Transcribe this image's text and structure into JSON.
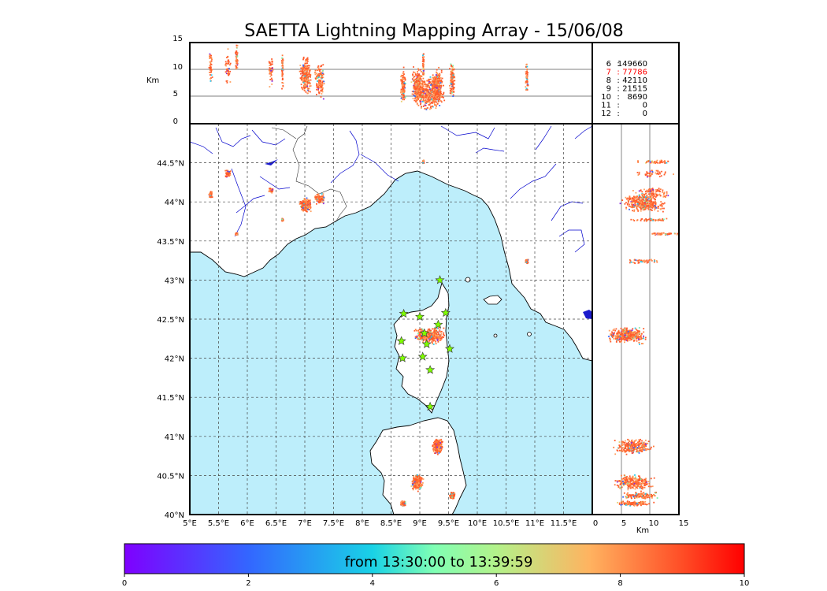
{
  "title": "SAETTA Lightning Mapping Array - 15/06/08",
  "time_range_label": "from 13:30:00 to 13:39:59",
  "km_label": "Km",
  "km_ticks": [
    "0",
    "5",
    "10",
    "15"
  ],
  "lon_ticks": [
    "5°E",
    "5.5°E",
    "6°E",
    "6.5°E",
    "7°E",
    "7.5°E",
    "8°E",
    "8.5°E",
    "9°E",
    "9.5°E",
    "10°E",
    "10.5°E",
    "11°E",
    "11.5°E"
  ],
  "lat_ticks": [
    "40°N",
    "40.5°N",
    "41°N",
    "41.5°N",
    "42°N",
    "42.5°N",
    "43°N",
    "43.5°N",
    "44°N",
    "44.5°N"
  ],
  "colorbar_ticks": [
    "0",
    "2",
    "4",
    "6",
    "8",
    "10"
  ],
  "station_counts": [
    {
      "station": "6",
      "sep": ":",
      "count": "149660",
      "color": "#000000"
    },
    {
      "station": "7",
      "sep": ":",
      "count": "77786",
      "color": "#ff0000"
    },
    {
      "station": "8",
      "sep": ":",
      "count": "42110",
      "color": "#000000"
    },
    {
      "station": "9",
      "sep": ":",
      "count": "21515",
      "color": "#000000"
    },
    {
      "station": "10",
      "sep": ":",
      "count": "8690",
      "color": "#000000"
    },
    {
      "station": "11",
      "sep": ":",
      "count": "0",
      "color": "#000000"
    },
    {
      "station": "12",
      "sep": ":",
      "count": "0",
      "color": "#000000"
    }
  ],
  "colors": {
    "sea": "#bdeefb",
    "land": "#ffffff",
    "rivers": "#0000cc",
    "station_marker": "#7fff00",
    "dense_source": "#ff5a2a"
  },
  "chart_data": {
    "type": "scatter",
    "title": "SAETTA Lightning Mapping Array - 15/06/08",
    "xlim": [
      5,
      12
    ],
    "ylim": [
      40,
      45
    ],
    "altitude_range_km": [
      0,
      15
    ],
    "color_scale": {
      "min": 0,
      "max": 10,
      "label": "from 13:30:00 to 13:39:59"
    },
    "stations": [
      {
        "lon": 9.35,
        "lat": 43.0
      },
      {
        "lon": 8.72,
        "lat": 42.57
      },
      {
        "lon": 9.0,
        "lat": 42.53
      },
      {
        "lon": 9.45,
        "lat": 42.58
      },
      {
        "lon": 9.32,
        "lat": 42.43
      },
      {
        "lon": 9.08,
        "lat": 42.32
      },
      {
        "lon": 8.68,
        "lat": 42.22
      },
      {
        "lon": 9.12,
        "lat": 42.18
      },
      {
        "lon": 9.52,
        "lat": 42.12
      },
      {
        "lon": 8.7,
        "lat": 42.0
      },
      {
        "lon": 9.05,
        "lat": 42.02
      },
      {
        "lon": 9.18,
        "lat": 41.85
      },
      {
        "lon": 9.18,
        "lat": 41.38
      }
    ],
    "clusters": [
      {
        "lon": 9.15,
        "lat": 42.3,
        "lon_spread": 0.32,
        "lat_spread": 0.12,
        "alt_km": 6,
        "density": "very high"
      },
      {
        "lon": 7.0,
        "lat": 43.97,
        "lon_spread": 0.12,
        "lat_spread": 0.1,
        "alt_km": 9,
        "density": "high"
      },
      {
        "lon": 7.25,
        "lat": 44.05,
        "lon_spread": 0.1,
        "lat_spread": 0.08,
        "alt_km": 8,
        "density": "medium"
      },
      {
        "lon": 9.3,
        "lat": 40.88,
        "lon_spread": 0.1,
        "lat_spread": 0.12,
        "alt_km": 7,
        "density": "high"
      },
      {
        "lon": 8.95,
        "lat": 40.42,
        "lon_spread": 0.12,
        "lat_spread": 0.12,
        "alt_km": 7,
        "density": "high"
      },
      {
        "lon": 9.55,
        "lat": 40.25,
        "lon_spread": 0.06,
        "lat_spread": 0.05,
        "alt_km": 8,
        "density": "medium"
      },
      {
        "lon": 8.7,
        "lat": 40.15,
        "lon_spread": 0.05,
        "lat_spread": 0.04,
        "alt_km": 7,
        "density": "medium"
      },
      {
        "lon": 5.65,
        "lat": 44.37,
        "lon_spread": 0.06,
        "lat_spread": 0.05,
        "alt_km": 11,
        "density": "low"
      },
      {
        "lon": 6.4,
        "lat": 44.15,
        "lon_spread": 0.05,
        "lat_spread": 0.04,
        "alt_km": 10,
        "density": "low"
      },
      {
        "lon": 5.35,
        "lat": 44.1,
        "lon_spread": 0.04,
        "lat_spread": 0.05,
        "alt_km": 11,
        "density": "low"
      },
      {
        "lon": 5.8,
        "lat": 43.6,
        "lon_spread": 0.03,
        "lat_spread": 0.02,
        "alt_km": 12,
        "density": "low"
      },
      {
        "lon": 10.85,
        "lat": 43.25,
        "lon_spread": 0.03,
        "lat_spread": 0.04,
        "alt_km": 9,
        "density": "low"
      },
      {
        "lon": 9.05,
        "lat": 44.52,
        "lon_spread": 0.02,
        "lat_spread": 0.03,
        "alt_km": 11,
        "density": "low"
      },
      {
        "lon": 6.6,
        "lat": 43.78,
        "lon_spread": 0.02,
        "lat_spread": 0.02,
        "alt_km": 10,
        "density": "low"
      }
    ]
  }
}
